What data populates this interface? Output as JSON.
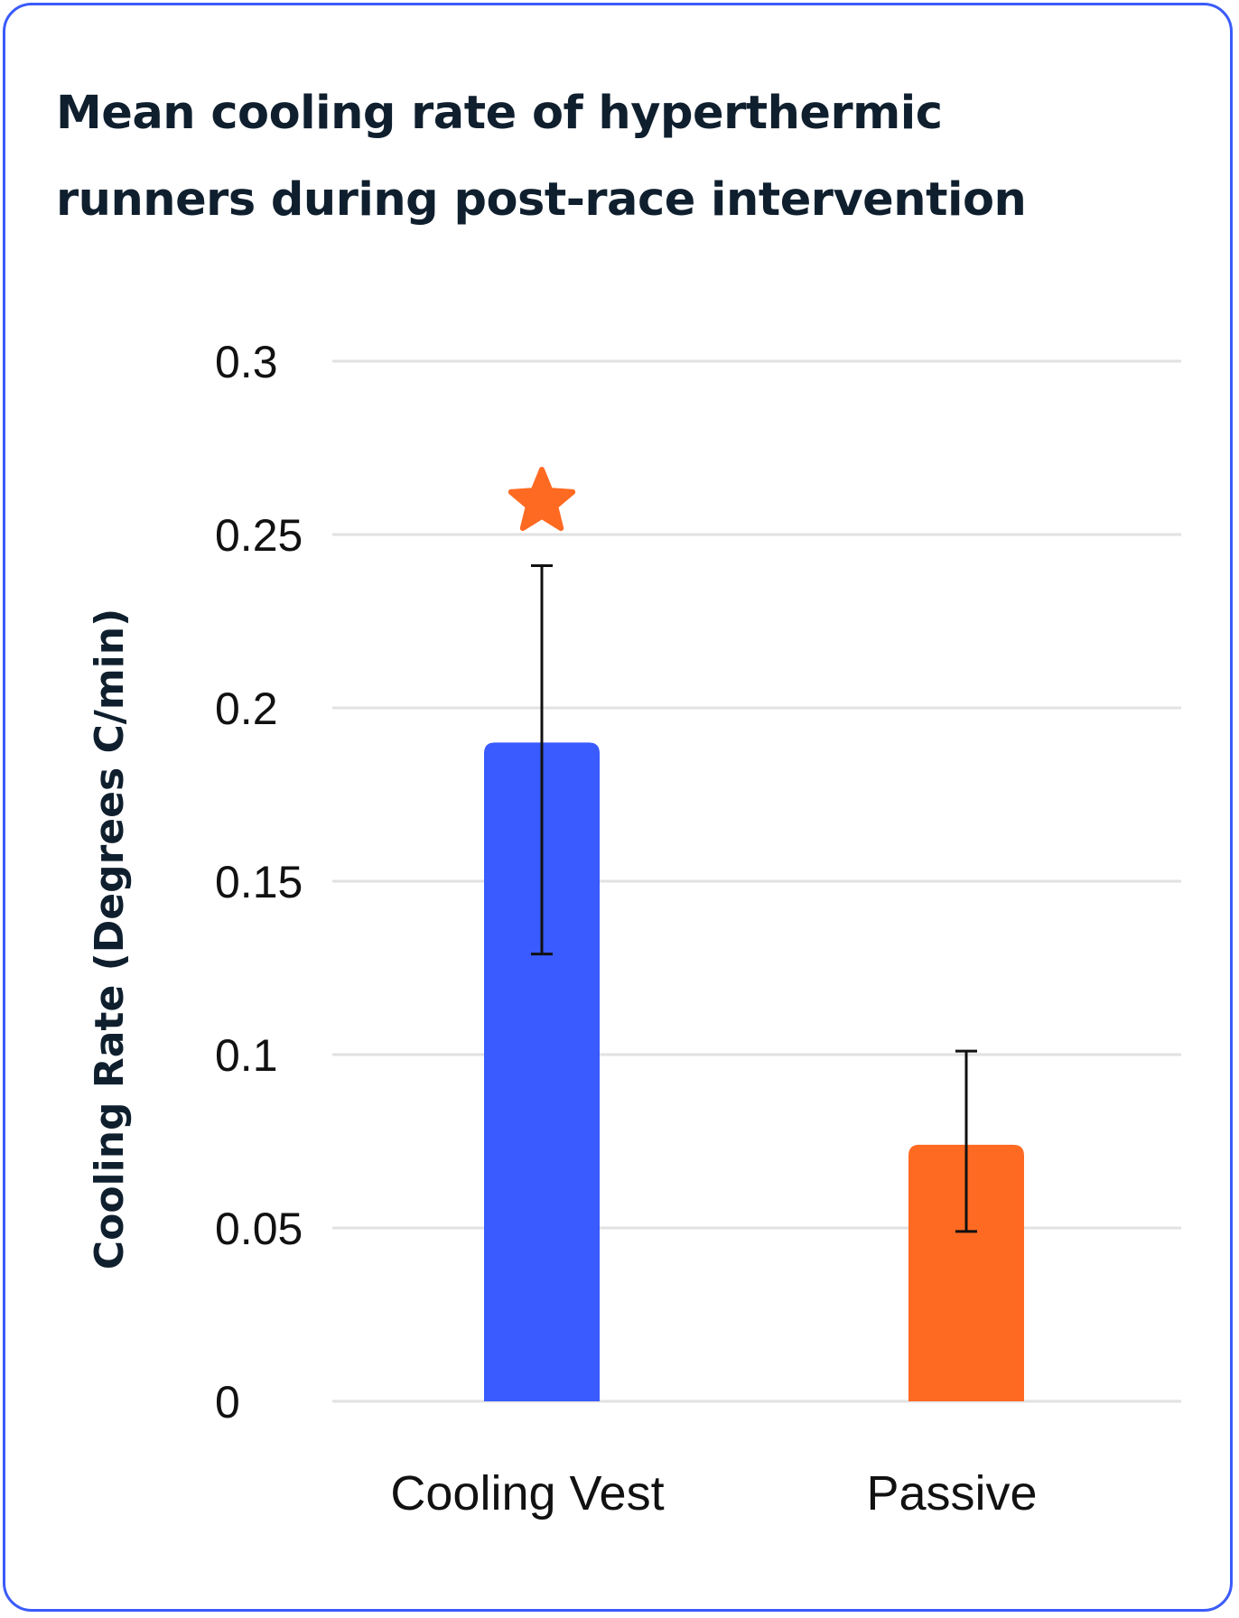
{
  "chart_data": {
    "type": "bar",
    "title": "Mean cooling rate of hyperthermic runners during post-race intervention",
    "ylabel": "Cooling Rate (Degrees C/min)",
    "xlabel": "",
    "categories": [
      "Cooling Vest",
      "Passive"
    ],
    "values": [
      0.19,
      0.074
    ],
    "error_bars": [
      {
        "low": 0.129,
        "high": 0.241
      },
      {
        "low": 0.049,
        "high": 0.101
      }
    ],
    "bar_colors": [
      "#3a5bff",
      "#ff6a22"
    ],
    "significance_marker": {
      "category": "Cooling Vest",
      "symbol": "star",
      "color": "#ff6a22"
    },
    "ylim": [
      0,
      0.3
    ],
    "yticks": [
      0,
      0.05,
      0.1,
      0.15,
      0.2,
      0.25,
      0.3
    ],
    "ytick_labels": [
      "0",
      "0.05",
      "0.1",
      "0.15",
      "0.2",
      "0.25",
      "0.3"
    ],
    "grid": true,
    "legend": "none"
  }
}
